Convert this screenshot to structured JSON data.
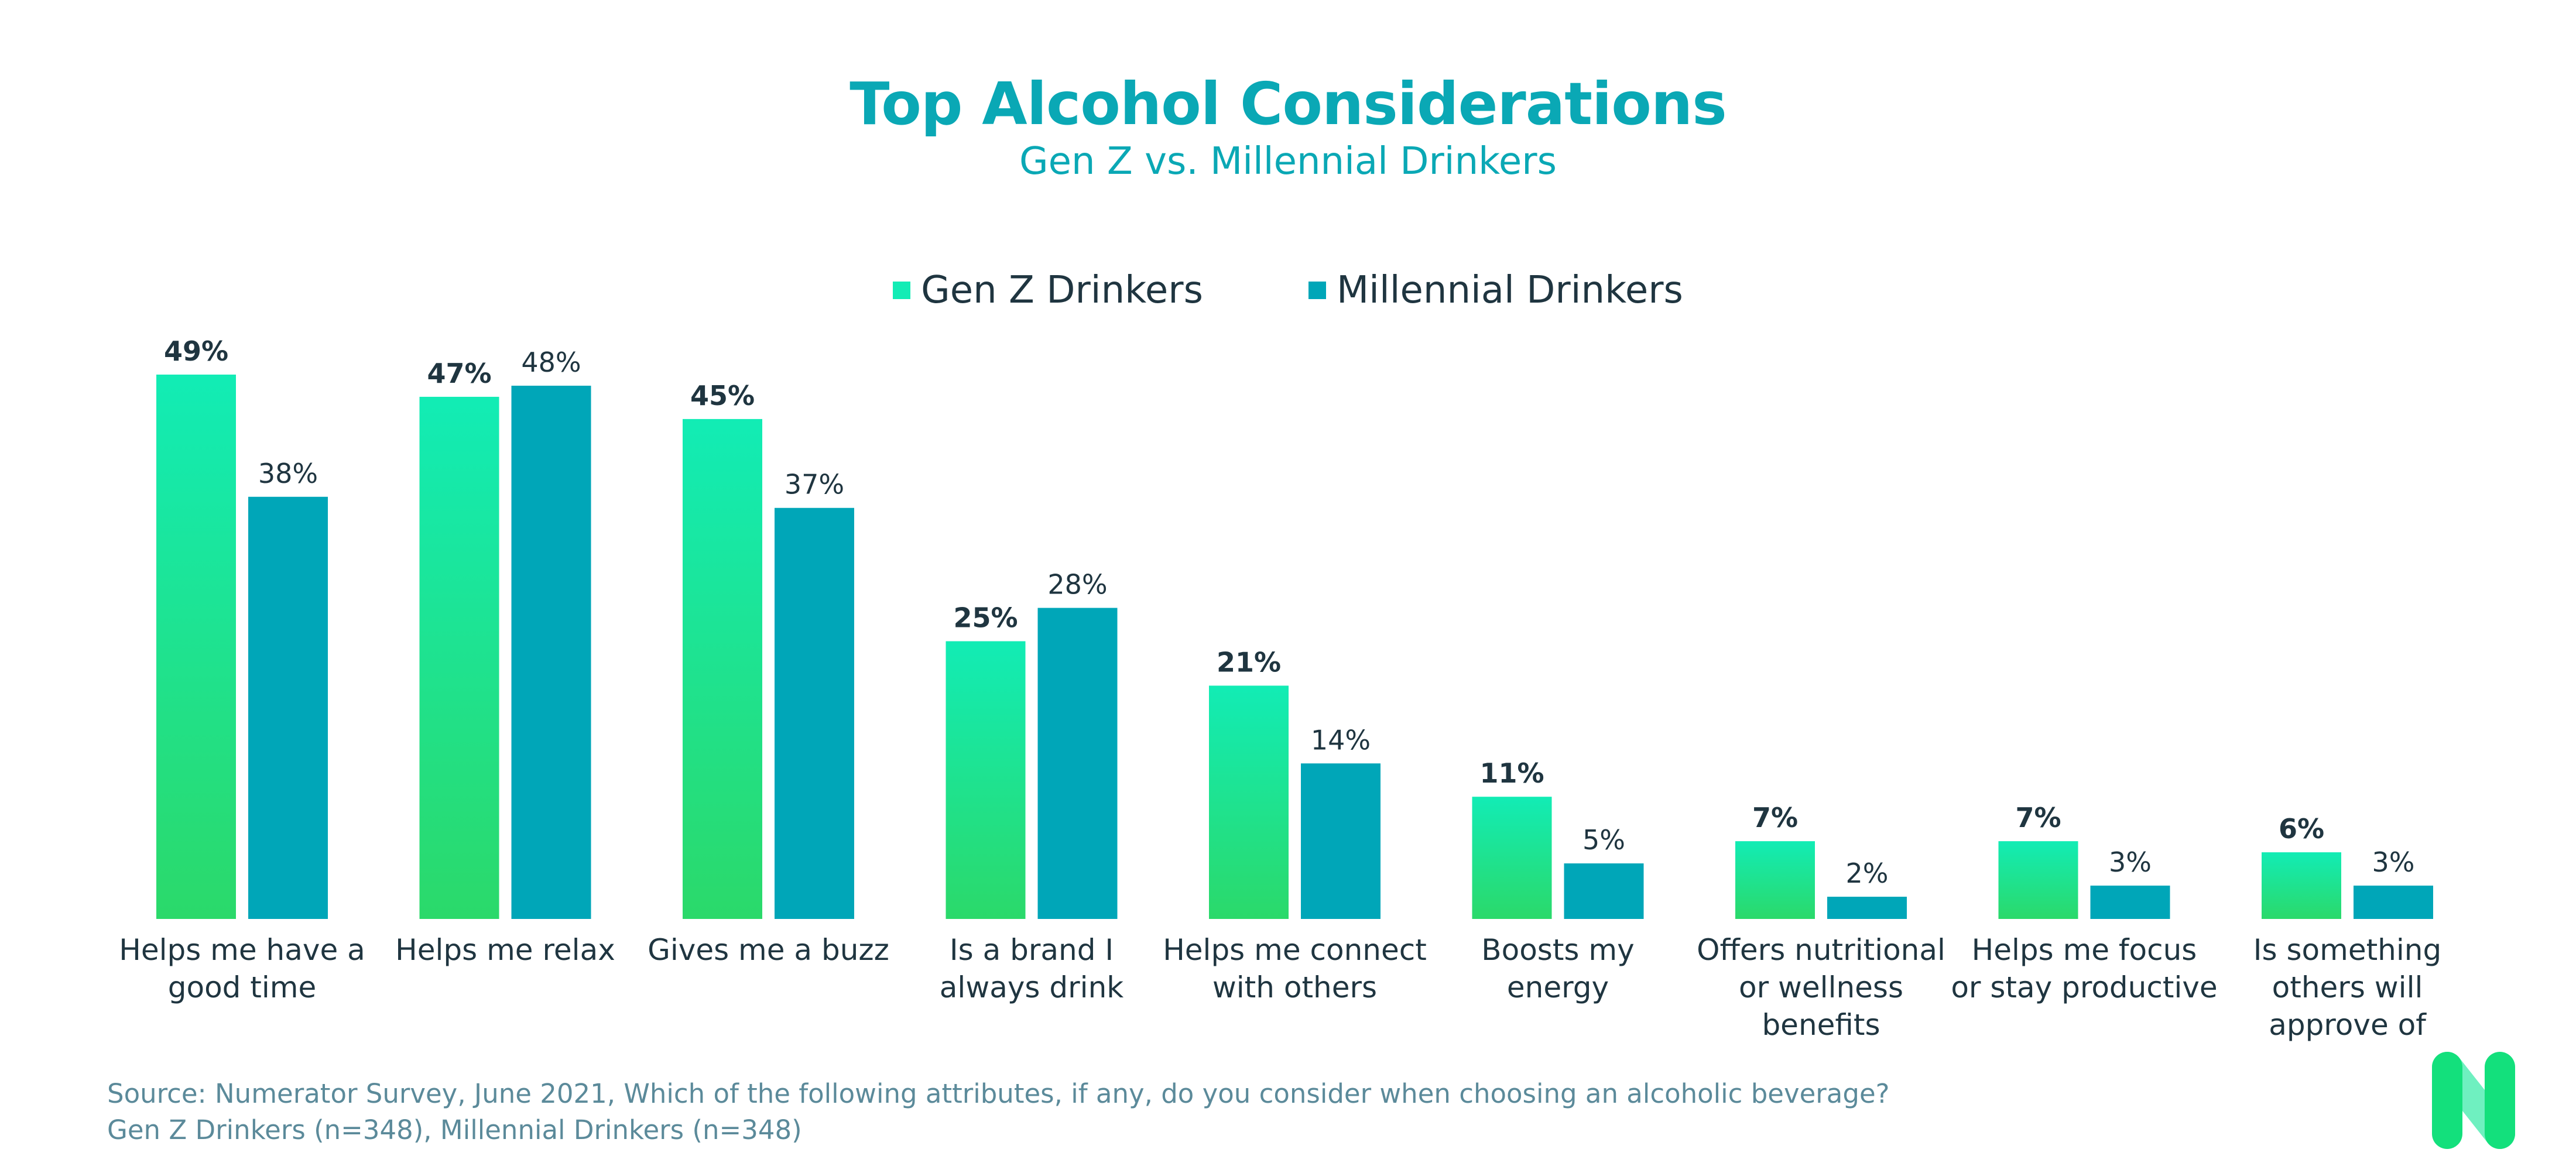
{
  "title": "Top Alcohol Considerations",
  "subtitle": "Gen Z vs. Millennial Drinkers",
  "colors": {
    "title": "#0aa8b5",
    "text": "#1f3540",
    "source": "#5b8a9a",
    "genz_top": "#12ecb5",
    "genz_bottom": "#2bd96a",
    "millennial": "#00a6b8",
    "logo_dark": "#13e07c",
    "logo_light": "#6ff0c0"
  },
  "logo_icon": "numerator-n-logo",
  "chart_data": {
    "type": "bar",
    "categories": [
      [
        "Helps me have a",
        "good time"
      ],
      [
        "Helps me relax"
      ],
      [
        "Gives me a buzz"
      ],
      [
        "Is a brand I",
        "always drink"
      ],
      [
        "Helps me connect",
        "with others"
      ],
      [
        "Boosts my",
        "energy"
      ],
      [
        "Offers nutritional",
        "or wellness",
        "benefits"
      ],
      [
        "Helps me focus",
        "or stay productive"
      ],
      [
        "Is something",
        "others will",
        "approve of"
      ]
    ],
    "series": [
      {
        "name": "Gen Z Drinkers",
        "values": [
          49,
          47,
          45,
          25,
          21,
          11,
          7,
          7,
          6
        ]
      },
      {
        "name": "Millennial Drinkers",
        "values": [
          38,
          48,
          37,
          28,
          14,
          5,
          2,
          3,
          3
        ]
      }
    ],
    "value_suffix": "%",
    "ylim": [
      0,
      49
    ],
    "grid": false,
    "legend": "top-center"
  },
  "source": {
    "line1": "Source: Numerator Survey, June 2021, Which of the following attributes, if any, do you consider when choosing an alcoholic beverage?",
    "line2": "Gen Z Drinkers (n=348), Millennial Drinkers (n=348)"
  }
}
